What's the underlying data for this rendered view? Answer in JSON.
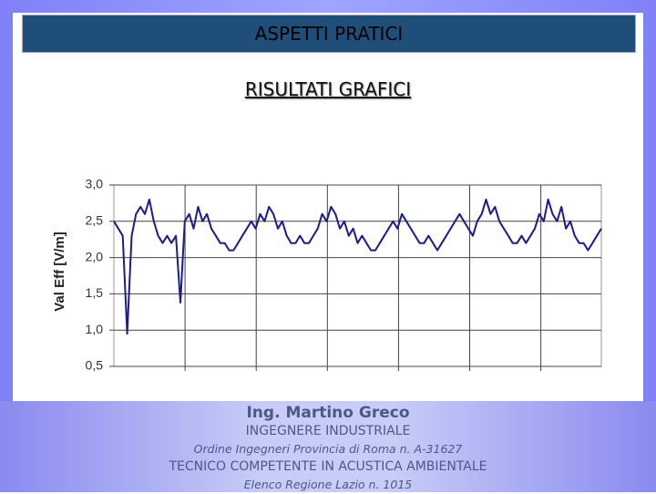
{
  "slide": {
    "title": "ASPETTI PRATICI",
    "subtitle": "RISULTATI GRAFICI",
    "footer": [
      "Ing. Martino Greco",
      "INGEGNERE INDUSTRIALE",
      "Ordine Ingegneri Provincia di Roma n. A-31627",
      "TECNICO COMPETENTE IN ACUSTICA AMBIENTALE",
      "Elenco Regione Lazio n. 1015"
    ]
  },
  "chart_data": {
    "type": "line",
    "y_label": "Val Eff [V/m]",
    "ylim": [
      0.5,
      3.0
    ],
    "yticks": [
      {
        "value": 0.5,
        "label": "0,5"
      },
      {
        "value": 1.0,
        "label": "1,0"
      },
      {
        "value": 1.5,
        "label": "1,5"
      },
      {
        "value": 2.0,
        "label": "2,0"
      },
      {
        "value": 2.5,
        "label": "2,5"
      },
      {
        "value": 3.0,
        "label": "3,0"
      }
    ],
    "grid": true,
    "color": "#1c1c8a",
    "values": [
      2.5,
      2.4,
      2.3,
      0.95,
      2.3,
      2.6,
      2.7,
      2.6,
      2.8,
      2.5,
      2.3,
      2.2,
      2.3,
      2.2,
      2.3,
      1.38,
      2.5,
      2.6,
      2.4,
      2.7,
      2.5,
      2.6,
      2.4,
      2.3,
      2.2,
      2.2,
      2.1,
      2.1,
      2.2,
      2.3,
      2.4,
      2.5,
      2.4,
      2.6,
      2.5,
      2.7,
      2.6,
      2.4,
      2.5,
      2.3,
      2.2,
      2.2,
      2.3,
      2.2,
      2.2,
      2.3,
      2.4,
      2.6,
      2.5,
      2.7,
      2.6,
      2.4,
      2.5,
      2.3,
      2.4,
      2.2,
      2.3,
      2.2,
      2.1,
      2.1,
      2.2,
      2.3,
      2.4,
      2.5,
      2.4,
      2.6,
      2.5,
      2.4,
      2.3,
      2.2,
      2.2,
      2.3,
      2.2,
      2.1,
      2.2,
      2.3,
      2.4,
      2.5,
      2.6,
      2.5,
      2.4,
      2.3,
      2.5,
      2.6,
      2.8,
      2.6,
      2.7,
      2.5,
      2.4,
      2.3,
      2.2,
      2.2,
      2.3,
      2.2,
      2.3,
      2.4,
      2.6,
      2.5,
      2.8,
      2.6,
      2.5,
      2.7,
      2.4,
      2.5,
      2.3,
      2.2,
      2.2,
      2.1,
      2.2,
      2.3,
      2.4
    ]
  }
}
